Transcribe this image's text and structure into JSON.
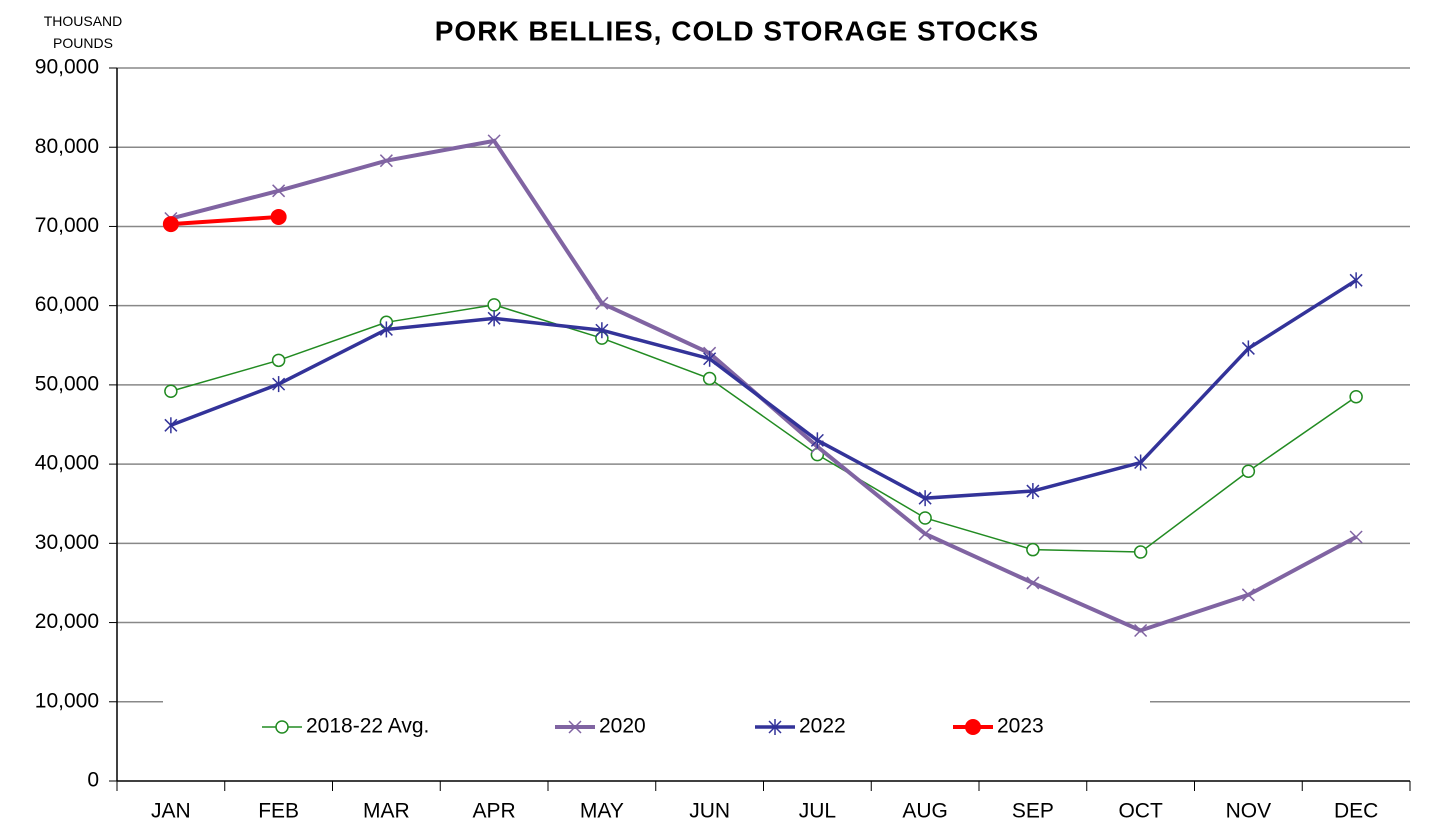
{
  "chart_data": {
    "type": "line",
    "title": "PORK BELLIES, COLD STORAGE STOCKS",
    "y_axis_label": "THOUSAND POUNDS",
    "categories": [
      "JAN",
      "FEB",
      "MAR",
      "APR",
      "MAY",
      "JUN",
      "JUL",
      "AUG",
      "SEP",
      "OCT",
      "NOV",
      "DEC"
    ],
    "series": [
      {
        "name": "2018-22 Avg.",
        "color": "#228b22",
        "marker": "circle-open",
        "line_width": 1.5,
        "values": [
          49200,
          53100,
          57900,
          60100,
          55900,
          50800,
          41200,
          33200,
          29200,
          28900,
          39100,
          48500
        ]
      },
      {
        "name": "2020",
        "color": "#8064a2",
        "marker": "x",
        "line_width": 4,
        "values": [
          71000,
          74500,
          78300,
          80800,
          60300,
          54000,
          42200,
          31200,
          25000,
          19000,
          23500,
          30800
        ]
      },
      {
        "name": "2022",
        "color": "#333399",
        "marker": "star",
        "line_width": 3.5,
        "values": [
          44900,
          50100,
          57000,
          58400,
          56900,
          53300,
          43000,
          35700,
          36600,
          40200,
          54600,
          63200
        ]
      },
      {
        "name": "2023",
        "color": "#ff0000",
        "marker": "circle",
        "line_width": 4,
        "values": [
          70300,
          71200,
          null,
          null,
          null,
          null,
          null,
          null,
          null,
          null,
          null,
          null
        ]
      }
    ],
    "ylim": [
      0,
      90000
    ],
    "yticks": [
      0,
      {
        "value": 10000,
        "label": "10,000"
      },
      {
        "value": 20000,
        "label": "20,000"
      },
      {
        "value": 30000,
        "label": "30,000"
      },
      {
        "value": 40000,
        "label": "40,000"
      },
      {
        "value": 50000,
        "label": "50,000"
      },
      {
        "value": 60000,
        "label": "60,000"
      },
      {
        "value": 70000,
        "label": "70,000"
      },
      {
        "value": 80000,
        "label": "80,000"
      },
      {
        "value": 90000,
        "label": "90,000"
      }
    ],
    "grid": true,
    "legend": "bottom"
  }
}
